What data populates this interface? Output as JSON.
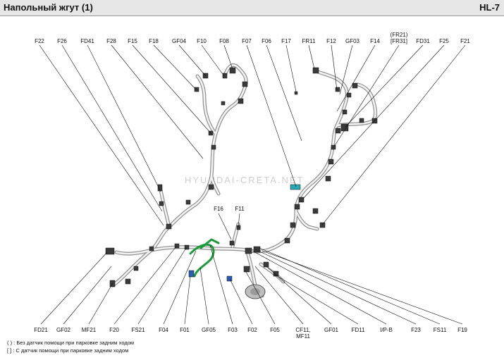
{
  "header": {
    "title": "Напольный жгут (1)",
    "code": "HL-7"
  },
  "watermark": "HYUNDAI-CRETA.NET",
  "connectors_top": [
    "F22",
    "F26",
    "FD41",
    "F28",
    "F15",
    "F18",
    "GF04",
    "F10",
    "F08",
    "F07",
    "F06",
    "F17",
    "FR11",
    "F12",
    "GF03",
    "F14",
    "(FR21)",
    "[FR31]",
    "FD31",
    "F25",
    "F21"
  ],
  "connectors_mid": [
    "F16",
    "F11"
  ],
  "connectors_bottom": [
    "FD21",
    "GF02",
    "MF21",
    "F20",
    "FS21",
    "F04",
    "F01",
    "GF05",
    "F03",
    "F02",
    "F05",
    "CF11,",
    "MF11",
    "GF01",
    "FD11",
    "I/P-B",
    "F23",
    "FS11",
    "F19"
  ],
  "notes": [
    "( ) : Без датчик помощи при парковке задним ходом",
    "[ ] : С датчик помощи при парковке задним ходом"
  ],
  "colors": {
    "harness": "#8a8a8a",
    "harness_fill": "#e9e9e9",
    "green_loom": "#1d9a3a",
    "blue_connector": "#2a5db0",
    "teal_connector": "#2aa7b3"
  }
}
